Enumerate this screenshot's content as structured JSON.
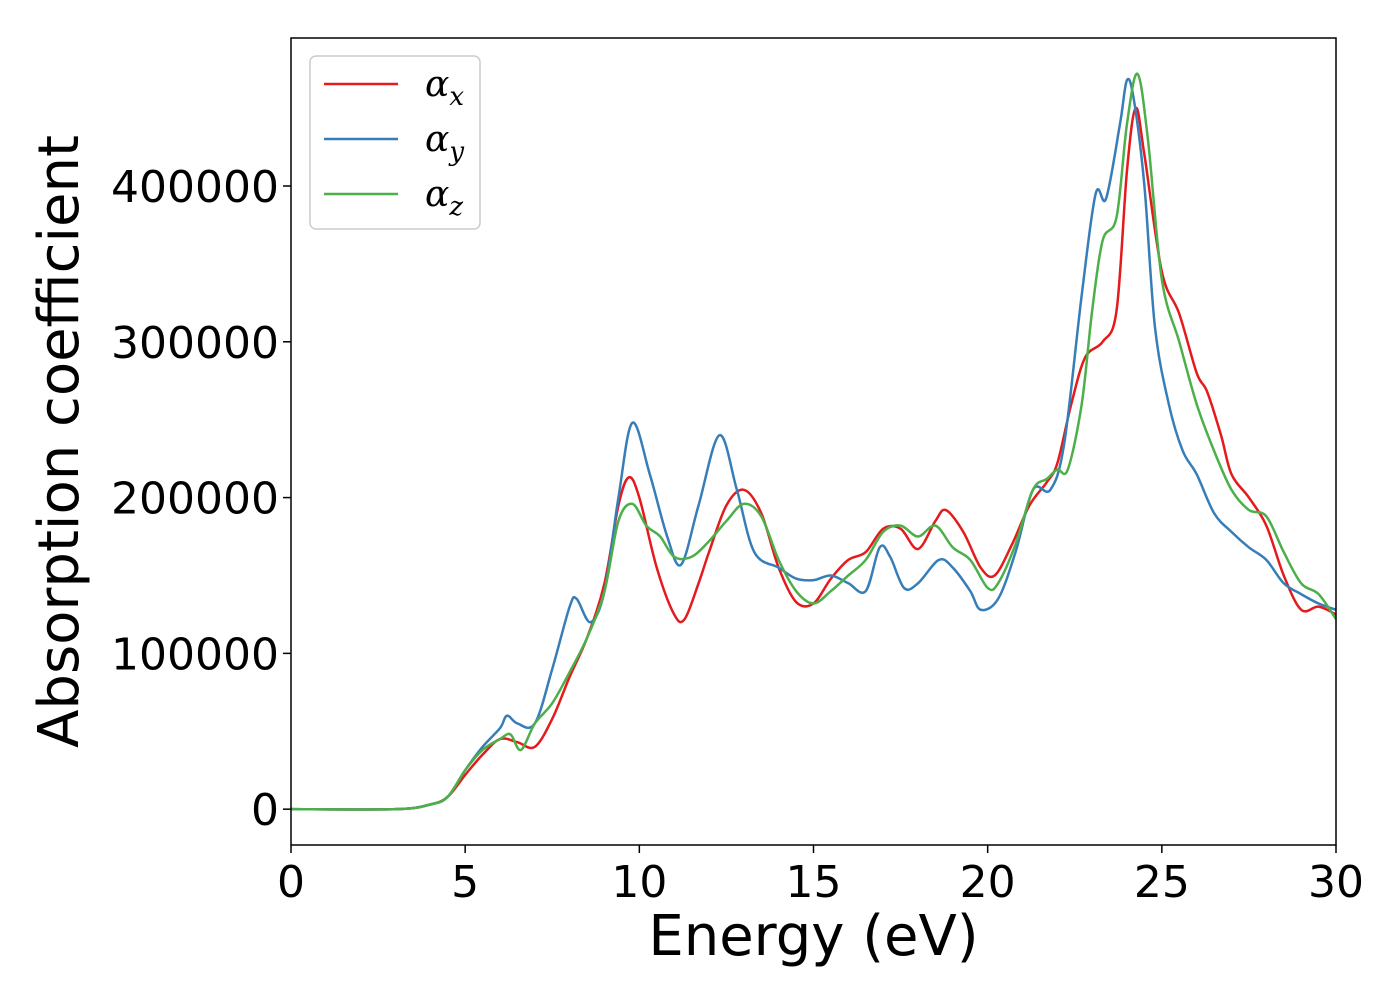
{
  "chart_data": {
    "type": "line",
    "xlabel": "Energy (eV)",
    "ylabel": "Absorption coefficient",
    "xlim": [
      0,
      30
    ],
    "ylim": [
      -23000,
      495000
    ],
    "xticks": [
      0,
      5,
      10,
      15,
      20,
      25,
      30
    ],
    "xtick_labels": [
      "0",
      "5",
      "10",
      "15",
      "20",
      "25",
      "30"
    ],
    "yticks": [
      0,
      100000,
      200000,
      300000,
      400000
    ],
    "ytick_labels": [
      "0",
      "100000",
      "200000",
      "300000",
      "400000"
    ],
    "grid": false,
    "legend_position": "top-left",
    "series": [
      {
        "name": "α",
        "subscript": "x",
        "color": "#e41a1c",
        "x": [
          0,
          3,
          4,
          4.5,
          5,
          5.5,
          6,
          6.5,
          7,
          7.5,
          8,
          8.5,
          9,
          9.4,
          9.7,
          10,
          10.5,
          11,
          11.3,
          11.7,
          12,
          12.5,
          13,
          13.5,
          14,
          14.5,
          15,
          15.5,
          16,
          16.5,
          17,
          17.5,
          18,
          18.5,
          18.8,
          19.3,
          19.8,
          20.2,
          20.7,
          21.2,
          21.7,
          22,
          22.4,
          22.8,
          23.3,
          23.7,
          24,
          24.25,
          24.5,
          25,
          25.5,
          26,
          26.3,
          26.7,
          27,
          27.5,
          28,
          28.5,
          29,
          29.5,
          30
        ],
        "values": [
          0,
          0,
          3000,
          8000,
          22000,
          35000,
          45000,
          43000,
          40000,
          58000,
          85000,
          110000,
          145000,
          195000,
          213000,
          200000,
          155000,
          125000,
          122000,
          145000,
          165000,
          195000,
          205000,
          190000,
          155000,
          133000,
          132000,
          148000,
          160000,
          165000,
          180000,
          180000,
          167000,
          185000,
          192000,
          178000,
          155000,
          150000,
          170000,
          195000,
          210000,
          222000,
          260000,
          290000,
          300000,
          320000,
          410000,
          450000,
          420000,
          345000,
          318000,
          280000,
          268000,
          240000,
          215000,
          200000,
          182000,
          150000,
          128000,
          130000,
          125000
        ]
      },
      {
        "name": "α",
        "subscript": "y",
        "color": "#377eb8",
        "x": [
          0,
          3,
          4,
          4.5,
          5,
          5.5,
          6,
          6.2,
          6.5,
          7,
          7.5,
          8,
          8.2,
          8.6,
          9,
          9.4,
          9.8,
          10.3,
          10.8,
          11.2,
          11.7,
          12.3,
          12.8,
          13.3,
          14,
          14.5,
          15,
          15.5,
          16,
          16.5,
          16.9,
          17.2,
          17.6,
          18,
          18.6,
          19,
          19.5,
          19.8,
          20.3,
          20.8,
          21.3,
          21.8,
          22.2,
          22.7,
          23.1,
          23.4,
          23.8,
          24.0,
          24.2,
          24.5,
          24.8,
          25.2,
          25.6,
          26,
          26.5,
          27,
          27.5,
          28,
          28.5,
          29,
          29.5,
          30
        ],
        "values": [
          0,
          0,
          3000,
          8000,
          25000,
          40000,
          52000,
          60000,
          55000,
          55000,
          90000,
          130000,
          135000,
          120000,
          140000,
          200000,
          248000,
          215000,
          175000,
          157000,
          195000,
          240000,
          205000,
          165000,
          155000,
          148000,
          147000,
          150000,
          145000,
          140000,
          168000,
          162000,
          142000,
          145000,
          160000,
          155000,
          140000,
          128000,
          135000,
          165000,
          205000,
          205000,
          235000,
          330000,
          395000,
          392000,
          440000,
          468000,
          455000,
          400000,
          310000,
          260000,
          230000,
          215000,
          190000,
          178000,
          168000,
          160000,
          145000,
          138000,
          132000,
          128000
        ]
      },
      {
        "name": "α",
        "subscript": "z",
        "color": "#4daf4a",
        "x": [
          0,
          3,
          4,
          4.5,
          5,
          5.5,
          6,
          6.3,
          6.6,
          7,
          7.5,
          8,
          8.5,
          9,
          9.4,
          9.8,
          10.2,
          10.6,
          11,
          11.5,
          12,
          12.5,
          13,
          13.5,
          14,
          14.5,
          15,
          15.5,
          16,
          16.5,
          17,
          17.5,
          18,
          18.5,
          19,
          19.5,
          20,
          20.3,
          20.8,
          21.3,
          21.7,
          22,
          22.3,
          22.7,
          23.0,
          23.3,
          23.7,
          24.0,
          24.3,
          24.6,
          25,
          25.5,
          26,
          26.5,
          27,
          27.5,
          28,
          28.5,
          29,
          29.5,
          30
        ],
        "values": [
          0,
          0,
          3000,
          8000,
          25000,
          38000,
          45000,
          48000,
          38000,
          55000,
          68000,
          88000,
          110000,
          140000,
          185000,
          196000,
          182000,
          175000,
          162000,
          162000,
          172000,
          185000,
          196000,
          188000,
          160000,
          140000,
          132000,
          140000,
          150000,
          160000,
          178000,
          182000,
          175000,
          182000,
          168000,
          160000,
          142000,
          145000,
          170000,
          205000,
          212000,
          218000,
          218000,
          260000,
          320000,
          365000,
          380000,
          440000,
          472000,
          430000,
          340000,
          300000,
          260000,
          230000,
          205000,
          192000,
          188000,
          165000,
          145000,
          138000,
          122000
        ]
      }
    ]
  }
}
